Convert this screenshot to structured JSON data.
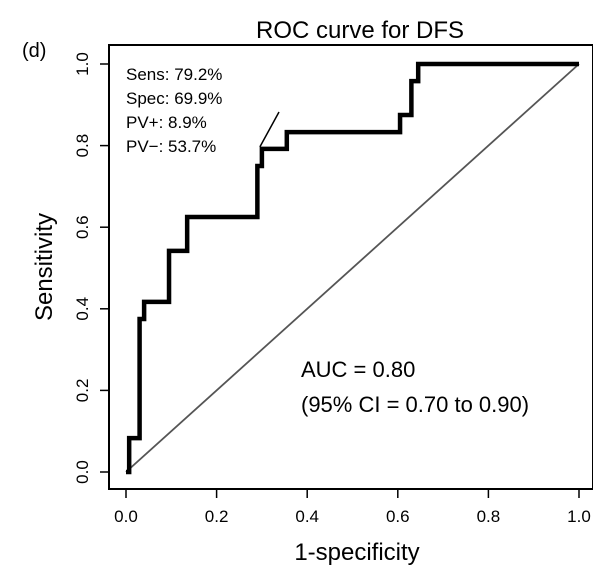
{
  "panel_label": "(d)",
  "chart_data": {
    "type": "line",
    "title": "ROC curve for DFS",
    "xlabel": "1-specificity",
    "ylabel": "Sensitivity",
    "xlim": [
      0,
      1
    ],
    "ylim": [
      0,
      1
    ],
    "xticks": [
      "0.0",
      "0.2",
      "0.4",
      "0.6",
      "0.8",
      "1.0"
    ],
    "yticks": [
      "0.0",
      "0.2",
      "0.4",
      "0.6",
      "0.8",
      "1.0"
    ],
    "grid": false,
    "series": [
      {
        "x": [
          0,
          0,
          0.007,
          0.007,
          0.03,
          0.03,
          0.04,
          0.04,
          0.095,
          0.095,
          0.135,
          0.135,
          0.29,
          0.29,
          0.3,
          0.3,
          0.355,
          0.355,
          0.605,
          0.605,
          0.63,
          0.63,
          0.645,
          0.645,
          1.0
        ],
        "y": [
          0,
          0.0,
          0.0,
          0.083,
          0.083,
          0.375,
          0.375,
          0.417,
          0.417,
          0.542,
          0.542,
          0.625,
          0.625,
          0.75,
          0.75,
          0.792,
          0.792,
          0.833,
          0.833,
          0.875,
          0.875,
          0.958,
          0.958,
          1.0,
          1.0
        ],
        "color": "#000000"
      }
    ],
    "reference_line": {
      "x": [
        0,
        1
      ],
      "y": [
        0,
        1
      ],
      "color": "#555555"
    },
    "cutoff_point": {
      "x": 0.3,
      "y": 0.792
    },
    "annotations": {
      "cutoff": [
        "Sens: 79.2%",
        "Spec: 69.9%",
        "PV+: 8.9%",
        "PV−: 53.7%"
      ],
      "auc": [
        "AUC = 0.80",
        "(95% CI = 0.70 to 0.90)"
      ]
    }
  }
}
